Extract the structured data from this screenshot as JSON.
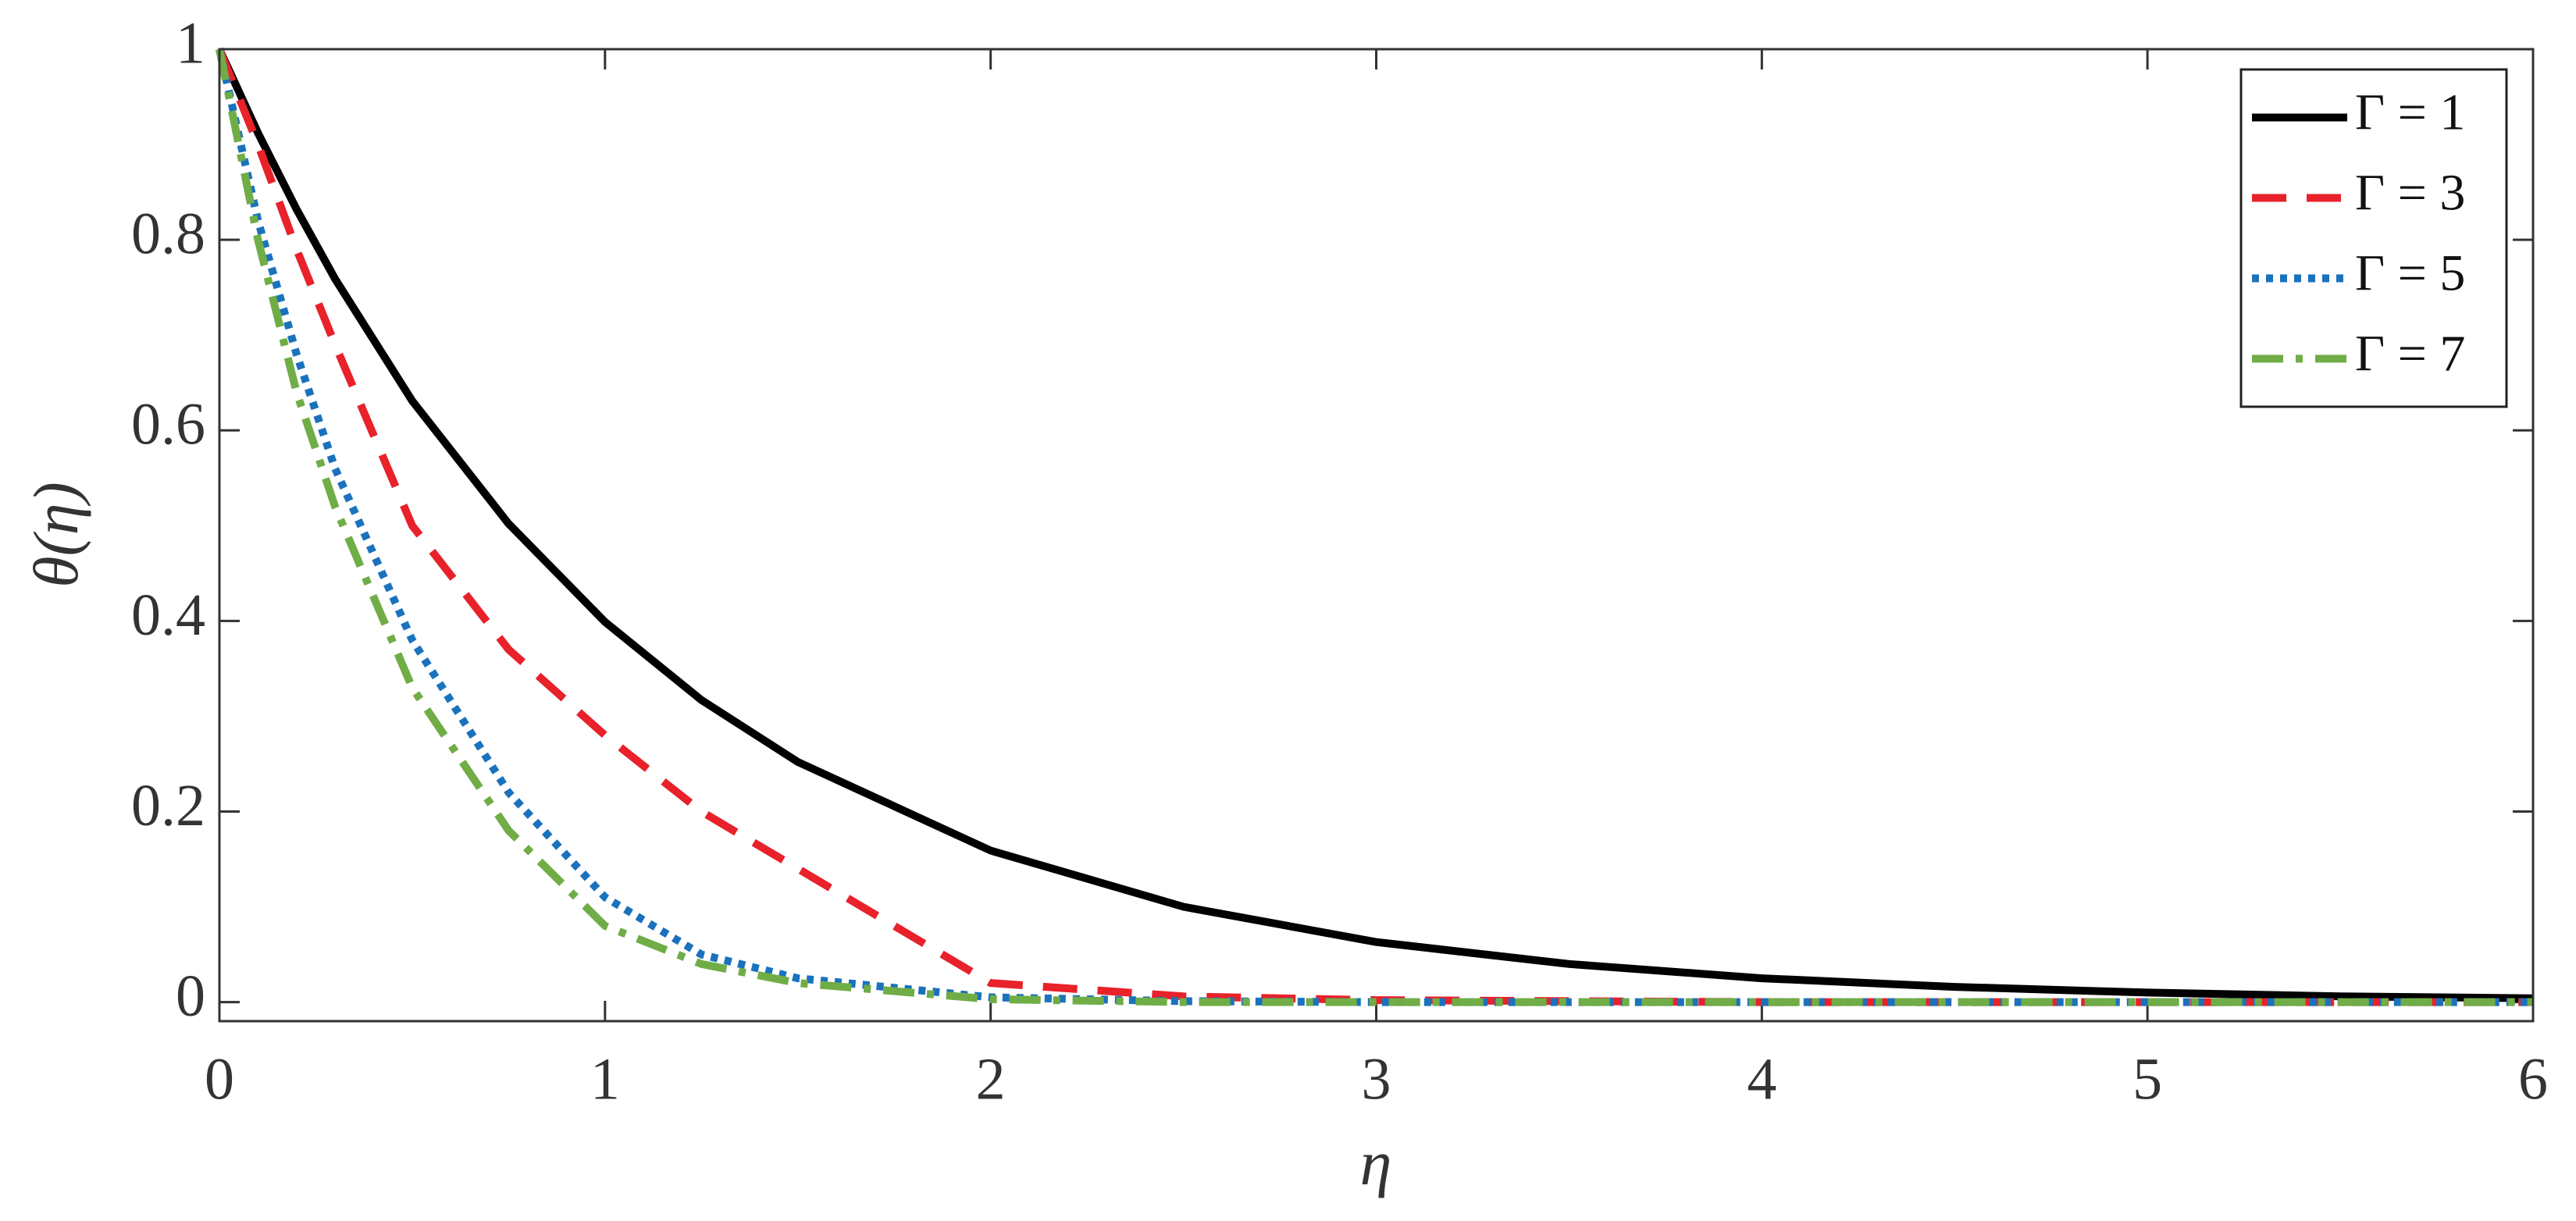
{
  "chart_data": {
    "type": "line",
    "x_label": "η",
    "y_label": "θ(η)",
    "x": [
      0,
      0.1,
      0.2,
      0.3,
      0.5,
      0.75,
      1,
      1.25,
      1.5,
      2,
      2.5,
      3,
      3.5,
      4,
      4.5,
      5,
      5.5,
      6
    ],
    "series": [
      {
        "name": "Γ = 1",
        "color": "#000000",
        "dash": "solid",
        "values": [
          1,
          0.912,
          0.832,
          0.759,
          0.631,
          0.502,
          0.399,
          0.317,
          0.252,
          0.159,
          0.1,
          0.063,
          0.04,
          0.025,
          0.016,
          0.01,
          0.006,
          0.004
        ]
      },
      {
        "name": "Γ = 3",
        "color": "#e8212a",
        "dash": "dashed",
        "values": [
          1,
          0.9,
          0.79,
          0.69,
          0.5,
          0.37,
          0.28,
          0.2,
          0.14,
          0.02,
          0.006,
          0.002,
          0.001,
          0,
          0,
          0,
          0,
          0
        ]
      },
      {
        "name": "Γ = 5",
        "color": "#1a72bd",
        "dash": "dotted",
        "values": [
          1,
          0.82,
          0.68,
          0.56,
          0.38,
          0.22,
          0.11,
          0.05,
          0.025,
          0.005,
          0.001,
          0,
          0,
          0,
          0,
          0,
          0,
          0
        ]
      },
      {
        "name": "Γ = 7",
        "color": "#70ad47",
        "dash": "dashdot",
        "values": [
          1,
          0.8,
          0.64,
          0.52,
          0.33,
          0.18,
          0.08,
          0.04,
          0.02,
          0.003,
          0,
          0,
          0,
          0,
          0,
          0,
          0,
          0
        ]
      }
    ],
    "xlim": [
      0,
      6
    ],
    "ylim": [
      -0.02,
      1
    ],
    "xticks": [
      0,
      1,
      2,
      3,
      4,
      5,
      6
    ],
    "yticks": [
      0,
      0.2,
      0.4,
      0.6,
      0.8,
      1
    ],
    "grid": false,
    "legend": "top-right"
  }
}
